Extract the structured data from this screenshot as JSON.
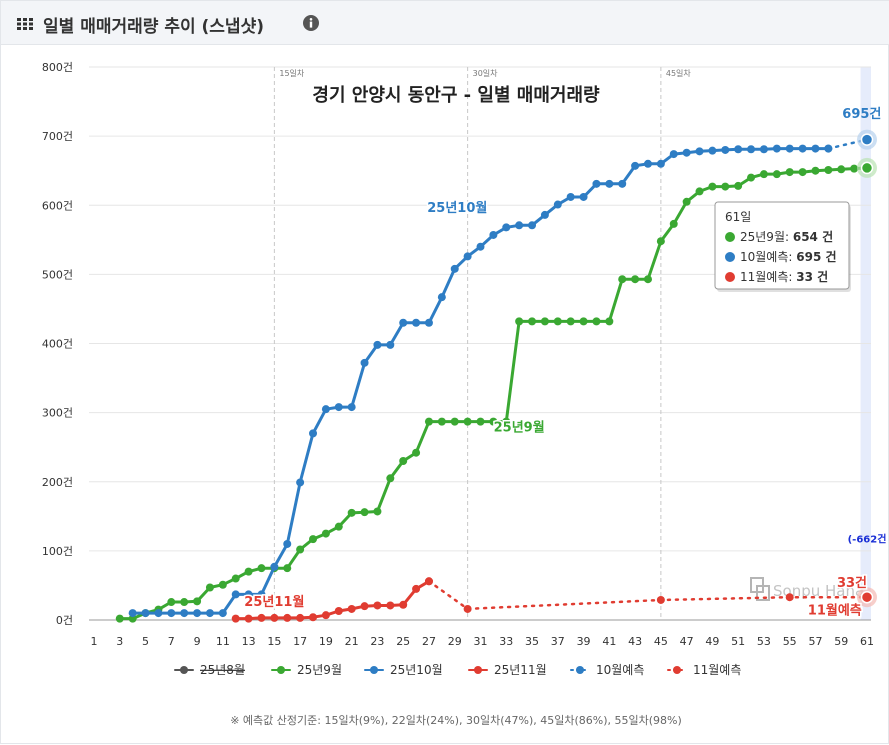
{
  "header": {
    "title": "일별 매매거래량 추이 (스냅샷)",
    "menu_icon": "grid-menu-icon",
    "info_icon": "info-icon"
  },
  "chart_data": {
    "type": "line",
    "title": "경기 안양시 동안구 - 일별 매매거래량",
    "ylim": [
      0,
      800
    ],
    "xlim": [
      1,
      61
    ],
    "yticks": [
      "0건",
      "100건",
      "200건",
      "300건",
      "400건",
      "500건",
      "600건",
      "700건",
      "800건"
    ],
    "xticks": [
      "1",
      "3",
      "5",
      "7",
      "9",
      "11",
      "13",
      "15",
      "17",
      "19",
      "21",
      "23",
      "25",
      "27",
      "29",
      "31",
      "33",
      "35",
      "37",
      "39",
      "41",
      "43",
      "45",
      "47",
      "49",
      "51",
      "53",
      "55",
      "57",
      "59",
      "61"
    ],
    "plot_lines": [
      {
        "x": 15,
        "label": "15일차"
      },
      {
        "x": 30,
        "label": "30일차"
      },
      {
        "x": 45,
        "label": "45일차"
      }
    ],
    "grid": "horizontal",
    "series": [
      {
        "name": "25년8월",
        "color": "#555555",
        "hidden": true,
        "x": [],
        "values": []
      },
      {
        "name": "25년9월",
        "color": "#3aa832",
        "label": "25년9월",
        "x": [
          3,
          4,
          5,
          6,
          7,
          8,
          9,
          10,
          11,
          12,
          13,
          14,
          15,
          16,
          17,
          18,
          19,
          20,
          21,
          22,
          23,
          24,
          25,
          26,
          27,
          28,
          29,
          30,
          31,
          32,
          33,
          34,
          35,
          36,
          37,
          38,
          39,
          40,
          41,
          42,
          43,
          44,
          45,
          46,
          47,
          48,
          49,
          50,
          51,
          52,
          53,
          54,
          55,
          56,
          57,
          58,
          59,
          60,
          61
        ],
        "values": [
          2,
          2,
          10,
          15,
          26,
          26,
          27,
          47,
          51,
          60,
          70,
          75,
          75,
          75,
          102,
          117,
          125,
          135,
          155,
          156,
          157,
          205,
          230,
          242,
          287,
          287,
          287,
          287,
          287,
          287,
          287,
          432,
          432,
          432,
          432,
          432,
          432,
          432,
          432,
          493,
          493,
          493,
          548,
          573,
          605,
          620,
          627,
          627,
          628,
          640,
          645,
          645,
          648,
          648,
          650,
          651,
          652,
          653,
          654
        ]
      },
      {
        "name": "25년10월",
        "color": "#2e7dc4",
        "label": "25년10월",
        "x": [
          4,
          5,
          6,
          7,
          8,
          9,
          10,
          11,
          12,
          13,
          14,
          15,
          16,
          17,
          18,
          19,
          20,
          21,
          22,
          23,
          24,
          25,
          26,
          27,
          28,
          29,
          30,
          31,
          32,
          33,
          34,
          35,
          36,
          37,
          38,
          39,
          40,
          41,
          42,
          43,
          44,
          45,
          46,
          47,
          48,
          49,
          50,
          51,
          52,
          53,
          54,
          55,
          56,
          57,
          58
        ],
        "values": [
          10,
          10,
          10,
          10,
          10,
          10,
          10,
          10,
          37,
          37,
          37,
          77,
          110,
          199,
          270,
          305,
          308,
          308,
          372,
          398,
          398,
          430,
          430,
          430,
          467,
          508,
          526,
          540,
          557,
          568,
          571,
          571,
          586,
          601,
          612,
          612,
          631,
          631,
          631,
          657,
          660,
          660,
          674,
          676,
          678,
          679,
          680,
          681,
          681,
          681,
          682,
          682,
          682,
          682,
          682
        ]
      },
      {
        "name": "25년11월",
        "color": "#e03c31",
        "label": "25년11월",
        "x": [
          12,
          13,
          14,
          15,
          16,
          17,
          18,
          19,
          20,
          21,
          22,
          23,
          24,
          25,
          26,
          27
        ],
        "values": [
          2,
          2,
          3,
          3,
          3,
          3,
          4,
          7,
          13,
          16,
          20,
          21,
          21,
          22,
          45,
          56
        ]
      },
      {
        "name": "10월예측",
        "color": "#2e7dc4",
        "dotted": true,
        "x": [
          58,
          61
        ],
        "values": [
          682,
          695
        ]
      },
      {
        "name": "11월예측",
        "color": "#e03c31",
        "dotted": true,
        "x": [
          27,
          30,
          45,
          55,
          61
        ],
        "values": [
          56,
          16,
          29,
          33,
          33
        ]
      }
    ],
    "end_labels": {
      "oct_forecast": "695건",
      "nov_forecast": "33건",
      "nov_forecast_name": "11월예측",
      "nov_change": "(-662건"
    },
    "tooltip": {
      "day": "61일",
      "rows": [
        {
          "label": "25년9월: ",
          "value": "654 건",
          "color": "#3aa832"
        },
        {
          "label": "10월예측: ",
          "value": "695 건",
          "color": "#2e7dc4"
        },
        {
          "label": "11월예측: ",
          "value": "33 건",
          "color": "#e03c31"
        }
      ]
    },
    "legend": [
      {
        "name": "25년8월",
        "color": "#555555",
        "style": "solid",
        "strike": true
      },
      {
        "name": "25년9월",
        "color": "#3aa832",
        "style": "solid"
      },
      {
        "name": "25년10월",
        "color": "#2e7dc4",
        "style": "solid"
      },
      {
        "name": "25년11월",
        "color": "#e03c31",
        "style": "solid"
      },
      {
        "name": "10월예측",
        "color": "#2e7dc4",
        "style": "dotted"
      },
      {
        "name": "11월예측",
        "color": "#e03c31",
        "style": "dotted"
      }
    ],
    "legend_placement": "bottom",
    "watermark": "Sonpu Hana",
    "footnote": "※ 예측값 산정기준: 15일차(9%), 22일차(24%), 30일차(47%), 45일차(86%), 55일차(98%)"
  }
}
